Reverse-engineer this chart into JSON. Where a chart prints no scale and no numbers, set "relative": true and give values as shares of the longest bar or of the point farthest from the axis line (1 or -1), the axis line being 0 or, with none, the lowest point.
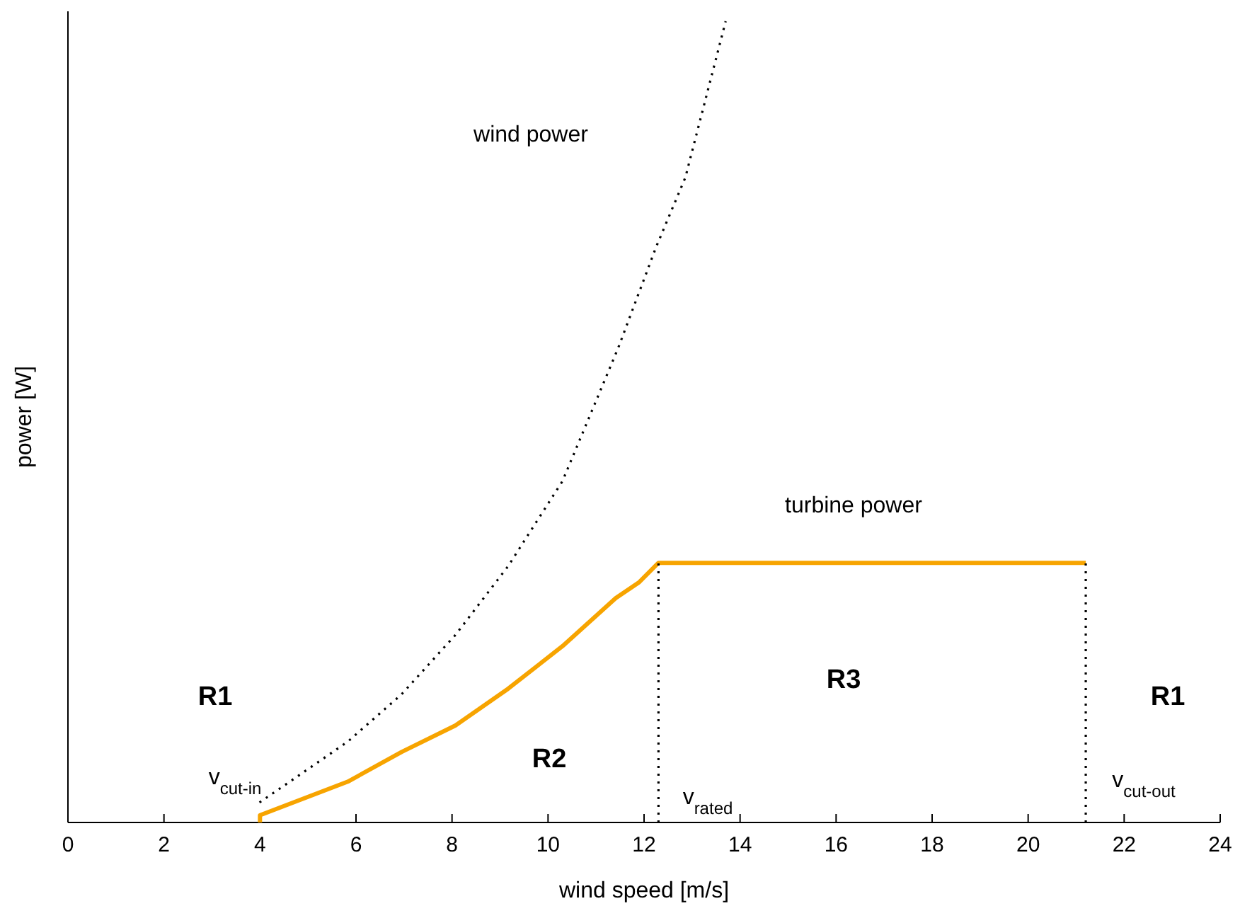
{
  "chart_data": {
    "type": "line",
    "relative": true,
    "xlabel": "wind speed [m/s]",
    "ylabel": "power [W]",
    "xlim": [
      0,
      24
    ],
    "xticks": [
      0,
      2,
      4,
      6,
      8,
      10,
      12,
      14,
      16,
      18,
      20,
      22,
      24
    ],
    "grid": false,
    "marker": "none",
    "series": [
      {
        "color": "#000000",
        "line_style": "dotted",
        "x": [
          3.99,
          4.72,
          5.83,
          6.95,
          8.07,
          9.17,
          10.3,
          11.46,
          12.25,
          12.86,
          13.7
        ],
        "values": [
          0.025,
          0.055,
          0.101,
          0.16,
          0.234,
          0.32,
          0.426,
          0.592,
          0.718,
          0.805,
          1
        ]
      },
      {
        "color": "#f7a400",
        "line_style": "solid",
        "x": [
          4,
          4,
          5.83,
          6.95,
          8.07,
          9.17,
          10.3,
          11.41,
          11.9,
          12.3,
          21.2
        ],
        "values": [
          0,
          0.009,
          0.051,
          0.088,
          0.121,
          0.167,
          0.22,
          0.28,
          0.3,
          0.324,
          0.324
        ]
      },
      {
        "color": "#000000",
        "line_style": "dotted",
        "x": [
          12.3,
          12.3
        ],
        "values": [
          0,
          0.324
        ]
      },
      {
        "color": "#000000",
        "line_style": "dotted",
        "x": [
          21.2,
          21.2
        ],
        "values": [
          0,
          0.324
        ]
      }
    ],
    "annotations": [
      "wind power",
      "turbine power",
      "R1",
      "R2",
      "R3",
      "R1",
      "v$_{cut-in}$",
      "v$_{rated}$",
      "v$_{cut-out}$"
    ]
  }
}
